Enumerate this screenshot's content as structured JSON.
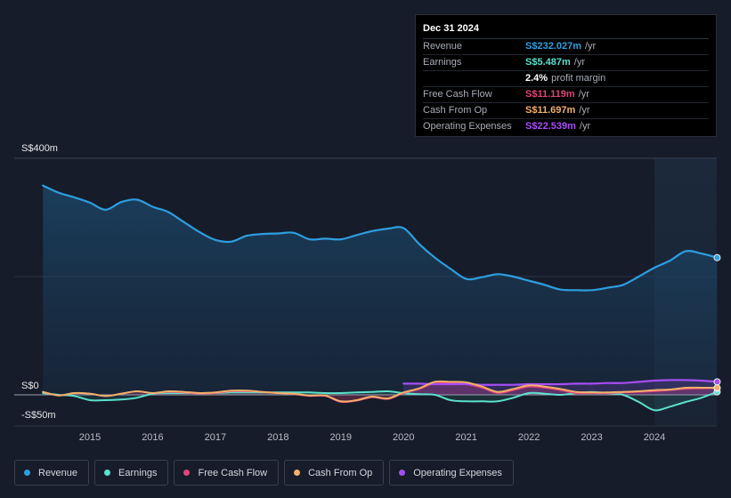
{
  "tooltip": {
    "date": "Dec 31 2024",
    "rows": [
      {
        "label": "Revenue",
        "value": "S$232.027m",
        "unit": "/yr",
        "color": "#2e9ee0"
      },
      {
        "label": "Earnings",
        "value": "S$5.487m",
        "unit": "/yr",
        "color": "#5be0cc"
      },
      {
        "label": "",
        "value": "2.4%",
        "unit": "profit margin",
        "color": "#ffffff"
      },
      {
        "label": "Free Cash Flow",
        "value": "S$11.119m",
        "unit": "/yr",
        "color": "#e0457b"
      },
      {
        "label": "Cash From Op",
        "value": "S$11.697m",
        "unit": "/yr",
        "color": "#f2b06a"
      },
      {
        "label": "Operating Expenses",
        "value": "S$22.539m",
        "unit": "/yr",
        "color": "#a64ef5"
      }
    ]
  },
  "legend": [
    {
      "label": "Revenue",
      "color": "#2e9ee0"
    },
    {
      "label": "Earnings",
      "color": "#5be0cc"
    },
    {
      "label": "Free Cash Flow",
      "color": "#e0457b"
    },
    {
      "label": "Cash From Op",
      "color": "#f2b06a"
    },
    {
      "label": "Operating Expenses",
      "color": "#a64ef5"
    }
  ],
  "chart_data": {
    "type": "area",
    "y_tick_labels": [
      "S$400m",
      "S$0",
      "-S$50m"
    ],
    "ylim": [
      -50,
      400
    ],
    "xlim": [
      2014.25,
      2025.0
    ],
    "x_tick_labels": [
      "2015",
      "2016",
      "2017",
      "2018",
      "2019",
      "2020",
      "2021",
      "2022",
      "2023",
      "2024"
    ],
    "x_ticks": [
      2015,
      2016,
      2017,
      2018,
      2019,
      2020,
      2021,
      2022,
      2023,
      2024
    ],
    "highlight_range": [
      2024.0,
      2025.0
    ],
    "grid": true,
    "series": [
      {
        "name": "Revenue",
        "color": "#2e9ee0",
        "fill": true,
        "x": [
          2014.25,
          2014.5,
          2014.75,
          2015.0,
          2015.25,
          2015.5,
          2015.75,
          2016.0,
          2016.25,
          2016.5,
          2016.75,
          2017.0,
          2017.25,
          2017.5,
          2017.75,
          2018.0,
          2018.25,
          2018.5,
          2018.75,
          2019.0,
          2019.25,
          2019.5,
          2019.75,
          2020.0,
          2020.25,
          2020.5,
          2020.75,
          2021.0,
          2021.25,
          2021.5,
          2021.75,
          2022.0,
          2022.25,
          2022.5,
          2022.75,
          2023.0,
          2023.25,
          2023.5,
          2023.75,
          2024.0,
          2024.25,
          2024.5,
          2024.75,
          2025.0
        ],
        "values": [
          354,
          342,
          334,
          325,
          313,
          326,
          330,
          318,
          309,
          292,
          275,
          262,
          259,
          269,
          272,
          273,
          274,
          263,
          264,
          263,
          270,
          277,
          281,
          282,
          255,
          232,
          213,
          196,
          199,
          204,
          200,
          193,
          186,
          178,
          177,
          177,
          181,
          186,
          200,
          215,
          227,
          243,
          239,
          232
        ]
      },
      {
        "name": "Earnings",
        "color": "#5be0cc",
        "fill": true,
        "x": [
          2014.25,
          2014.5,
          2014.75,
          2015.0,
          2015.25,
          2015.5,
          2015.75,
          2016.0,
          2016.25,
          2016.5,
          2016.75,
          2017.0,
          2017.25,
          2017.5,
          2017.75,
          2018.0,
          2018.25,
          2018.5,
          2018.75,
          2019.0,
          2019.25,
          2019.5,
          2019.75,
          2020.0,
          2020.25,
          2020.5,
          2020.75,
          2021.0,
          2021.25,
          2021.5,
          2021.75,
          2022.0,
          2022.25,
          2022.5,
          2022.75,
          2023.0,
          2023.25,
          2023.5,
          2023.75,
          2024.0,
          2024.25,
          2024.5,
          2024.75,
          2025.0
        ],
        "values": [
          3,
          0,
          -2,
          -9,
          -9,
          -8,
          -5,
          2,
          3,
          3,
          3,
          3,
          4,
          4,
          4,
          4,
          4,
          4,
          3,
          3,
          4,
          5,
          6,
          3,
          1,
          0,
          -9,
          -11,
          -11,
          -11,
          -5,
          3,
          2,
          0,
          3,
          5,
          3,
          0,
          -12,
          -26,
          -20,
          -12,
          -5,
          5
        ]
      },
      {
        "name": "Free Cash Flow",
        "color": "#e0457b",
        "fill": true,
        "x": [
          2014.25,
          2014.5,
          2014.75,
          2015.0,
          2015.25,
          2015.5,
          2015.75,
          2016.0,
          2016.25,
          2016.5,
          2016.75,
          2017.0,
          2017.25,
          2017.5,
          2017.75,
          2018.0,
          2018.25,
          2018.5,
          2018.75,
          2019.0,
          2019.25,
          2019.5,
          2019.75,
          2020.0,
          2020.25,
          2020.5,
          2020.75,
          2021.0,
          2021.25,
          2021.5,
          2021.75,
          2022.0,
          2022.25,
          2022.5,
          2022.75,
          2023.0,
          2023.25,
          2023.5,
          2023.75,
          2024.0,
          2024.25,
          2024.5,
          2024.75,
          2025.0
        ],
        "values": [
          5,
          -1,
          3,
          2,
          -2,
          2,
          6,
          3,
          5,
          4,
          2,
          3,
          6,
          6,
          5,
          3,
          1,
          -2,
          -2,
          -12,
          -10,
          -4,
          -7,
          3,
          10,
          20,
          20,
          18,
          12,
          3,
          8,
          14,
          12,
          8,
          3,
          3,
          3,
          4,
          5,
          6,
          8,
          10,
          11,
          11
        ]
      },
      {
        "name": "Cash From Op",
        "color": "#f2b06a",
        "fill": false,
        "x": [
          2014.25,
          2014.5,
          2014.75,
          2015.0,
          2015.25,
          2015.5,
          2015.75,
          2016.0,
          2016.25,
          2016.5,
          2016.75,
          2017.0,
          2017.25,
          2017.5,
          2017.75,
          2018.0,
          2018.25,
          2018.5,
          2018.75,
          2019.0,
          2019.25,
          2019.5,
          2019.75,
          2020.0,
          2020.25,
          2020.5,
          2020.75,
          2021.0,
          2021.25,
          2021.5,
          2021.75,
          2022.0,
          2022.25,
          2022.5,
          2022.75,
          2023.0,
          2023.25,
          2023.5,
          2023.75,
          2024.0,
          2024.25,
          2024.5,
          2024.75,
          2025.0
        ],
        "values": [
          5,
          -1,
          3,
          2,
          -2,
          2,
          6,
          3,
          6,
          5,
          3,
          4,
          7,
          7,
          5,
          3,
          2,
          -1,
          -1,
          -11,
          -9,
          -3,
          -6,
          4,
          11,
          22,
          22,
          21,
          14,
          5,
          10,
          16,
          14,
          10,
          5,
          4,
          4,
          5,
          6,
          8,
          9,
          12,
          12,
          12
        ]
      },
      {
        "name": "Operating Expenses",
        "color": "#a64ef5",
        "fill": true,
        "x": [
          2020.0,
          2020.25,
          2020.5,
          2020.75,
          2021.0,
          2021.25,
          2021.5,
          2021.75,
          2022.0,
          2022.25,
          2022.5,
          2022.75,
          2023.0,
          2023.25,
          2023.5,
          2023.75,
          2024.0,
          2024.25,
          2024.5,
          2024.75,
          2025.0
        ],
        "values": [
          19,
          19,
          18,
          18,
          18,
          17,
          17,
          17,
          18,
          18,
          18,
          19,
          19,
          20,
          20,
          22,
          24,
          25,
          25,
          24,
          22
        ]
      }
    ]
  }
}
